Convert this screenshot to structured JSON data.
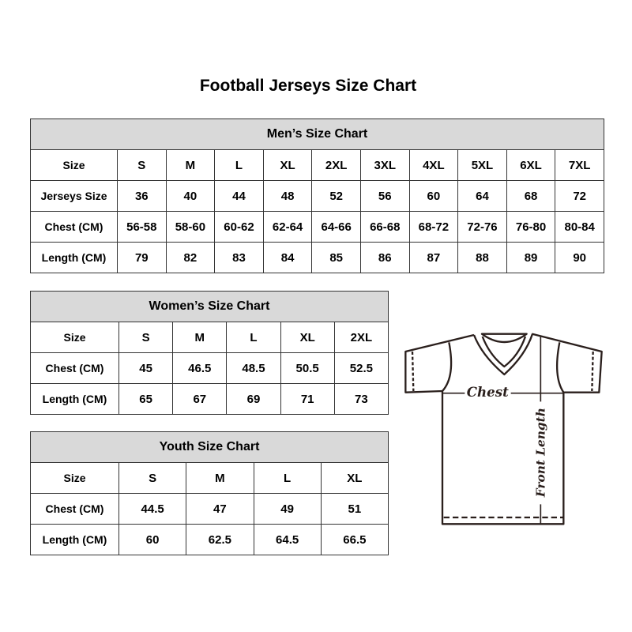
{
  "title": "Football Jerseys Size Chart",
  "men": {
    "title": "Men’s Size Chart",
    "rows": [
      {
        "label": "Size",
        "values": [
          "S",
          "M",
          "L",
          "XL",
          "2XL",
          "3XL",
          "4XL",
          "5XL",
          "6XL",
          "7XL"
        ]
      },
      {
        "label": "Jerseys Size",
        "values": [
          "36",
          "40",
          "44",
          "48",
          "52",
          "56",
          "60",
          "64",
          "68",
          "72"
        ]
      },
      {
        "label": "Chest (CM)",
        "values": [
          "56-58",
          "58-60",
          "60-62",
          "62-64",
          "64-66",
          "66-68",
          "68-72",
          "72-76",
          "76-80",
          "80-84"
        ]
      },
      {
        "label": "Length (CM)",
        "values": [
          "79",
          "82",
          "83",
          "84",
          "85",
          "86",
          "87",
          "88",
          "89",
          "90"
        ]
      }
    ]
  },
  "women": {
    "title": "Women’s Size Chart",
    "rows": [
      {
        "label": "Size",
        "values": [
          "S",
          "M",
          "L",
          "XL",
          "2XL"
        ]
      },
      {
        "label": "Chest (CM)",
        "values": [
          "45",
          "46.5",
          "48.5",
          "50.5",
          "52.5"
        ]
      },
      {
        "label": "Length (CM)",
        "values": [
          "65",
          "67",
          "69",
          "71",
          "73"
        ]
      }
    ]
  },
  "youth": {
    "title": "Youth Size Chart",
    "rows": [
      {
        "label": "Size",
        "values": [
          "S",
          "M",
          "L",
          "XL"
        ]
      },
      {
        "label": "Chest (CM)",
        "values": [
          "44.5",
          "47",
          "49",
          "51"
        ]
      },
      {
        "label": "Length (CM)",
        "values": [
          "60",
          "62.5",
          "64.5",
          "66.5"
        ]
      }
    ]
  },
  "diagram": {
    "chest_label": "Chest",
    "length_label": "Front Length"
  },
  "colors": {
    "header_fill": "#d9d9d9",
    "border": "#333333"
  }
}
